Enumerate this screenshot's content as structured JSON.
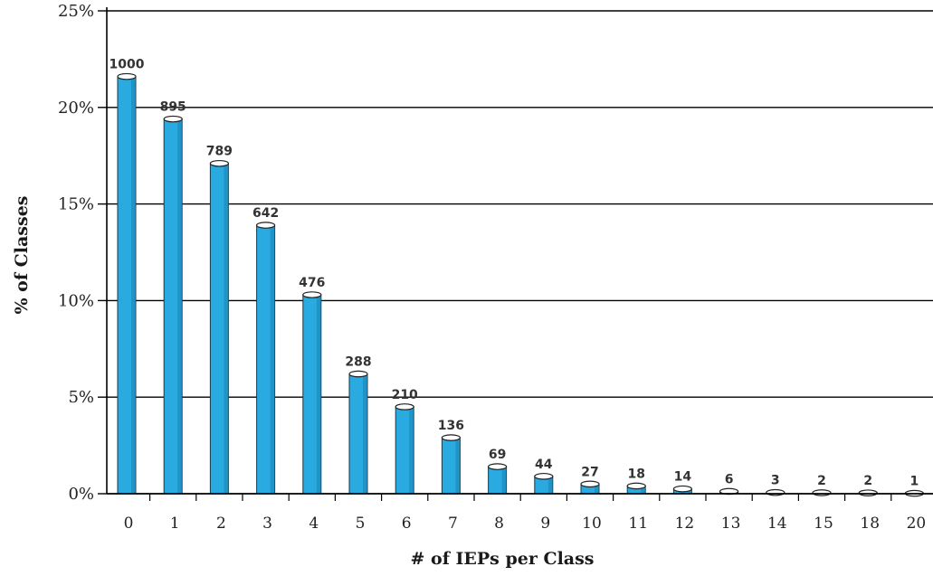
{
  "chart_data": {
    "type": "bar",
    "style": "3d-cylinder",
    "title": "",
    "xlabel": "# of IEPs per Class",
    "ylabel": "% of Classes",
    "categories": [
      "0",
      "1",
      "2",
      "3",
      "4",
      "5",
      "6",
      "7",
      "8",
      "9",
      "10",
      "11",
      "12",
      "13",
      "14",
      "15",
      "18",
      "20"
    ],
    "series": [
      {
        "values": [
          21.6,
          19.4,
          17.1,
          13.9,
          10.3,
          6.2,
          4.5,
          2.9,
          1.4,
          0.9,
          0.5,
          0.4,
          0.25,
          0.12,
          0.06,
          0.05,
          0.04,
          0.02
        ],
        "data_labels": [
          "1000",
          "895",
          "789",
          "642",
          "476",
          "288",
          "210",
          "136",
          "69",
          "44",
          "27",
          "18",
          "14",
          "6",
          "3",
          "2",
          "2",
          "1"
        ]
      }
    ],
    "ylim": [
      0,
      25
    ],
    "yticks": [
      "0%",
      "5%",
      "10%",
      "15%",
      "20%",
      "25%"
    ],
    "ytick_values": [
      0,
      5,
      10,
      15,
      20,
      25
    ],
    "grid": true,
    "legend": "none",
    "colors": {
      "bar": "#29abe2",
      "bar_dark": "#1a7fb0",
      "grid": "#000000"
    }
  }
}
